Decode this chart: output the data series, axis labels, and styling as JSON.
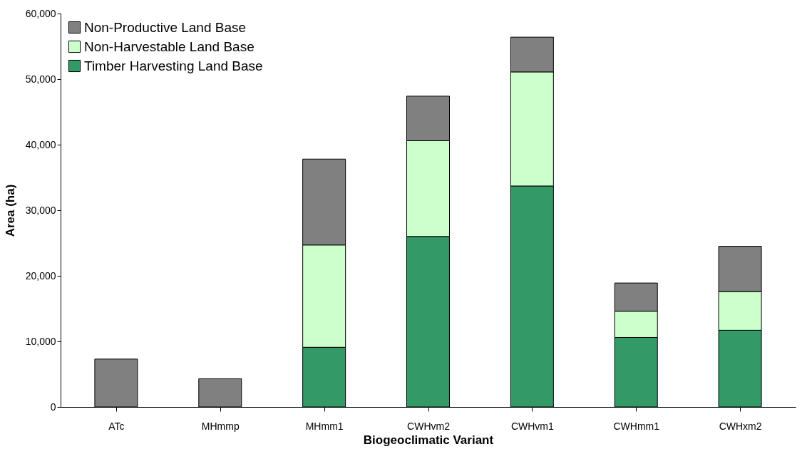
{
  "chart_data": {
    "type": "bar",
    "stacked": true,
    "xlabel": "Biogeoclimatic Variant",
    "ylabel": "Area (ha)",
    "categories": [
      "ATc",
      "MHmmp",
      "MHmm1",
      "CWHvm2",
      "CWHvm1",
      "CWHmm1",
      "CWHxm2"
    ],
    "series": [
      {
        "name": "Timber Harvesting Land Base",
        "color": "#339966",
        "values": [
          null,
          null,
          9100,
          26000,
          33700,
          10600,
          11700
        ]
      },
      {
        "name": "Non-Harvestable Land Base",
        "color": "#ccffcc",
        "values": [
          null,
          null,
          15600,
          14600,
          17400,
          4000,
          5900
        ]
      },
      {
        "name": "Non-Productive Land Base",
        "color": "#808080",
        "values": [
          7300,
          4300,
          13100,
          6800,
          5300,
          4300,
          6900
        ]
      }
    ],
    "ylim": [
      0,
      60000
    ],
    "yticks": [
      0,
      {
        "value": 10000,
        "label": "10,000"
      },
      {
        "value": 20000,
        "label": "20,000"
      },
      {
        "value": 30000,
        "label": "30,000"
      },
      {
        "value": 40000,
        "label": "40,000"
      },
      {
        "value": 50000,
        "label": "50,000"
      },
      {
        "value": 60000,
        "label": "60,000"
      }
    ],
    "grid": false,
    "legend": "top left"
  }
}
